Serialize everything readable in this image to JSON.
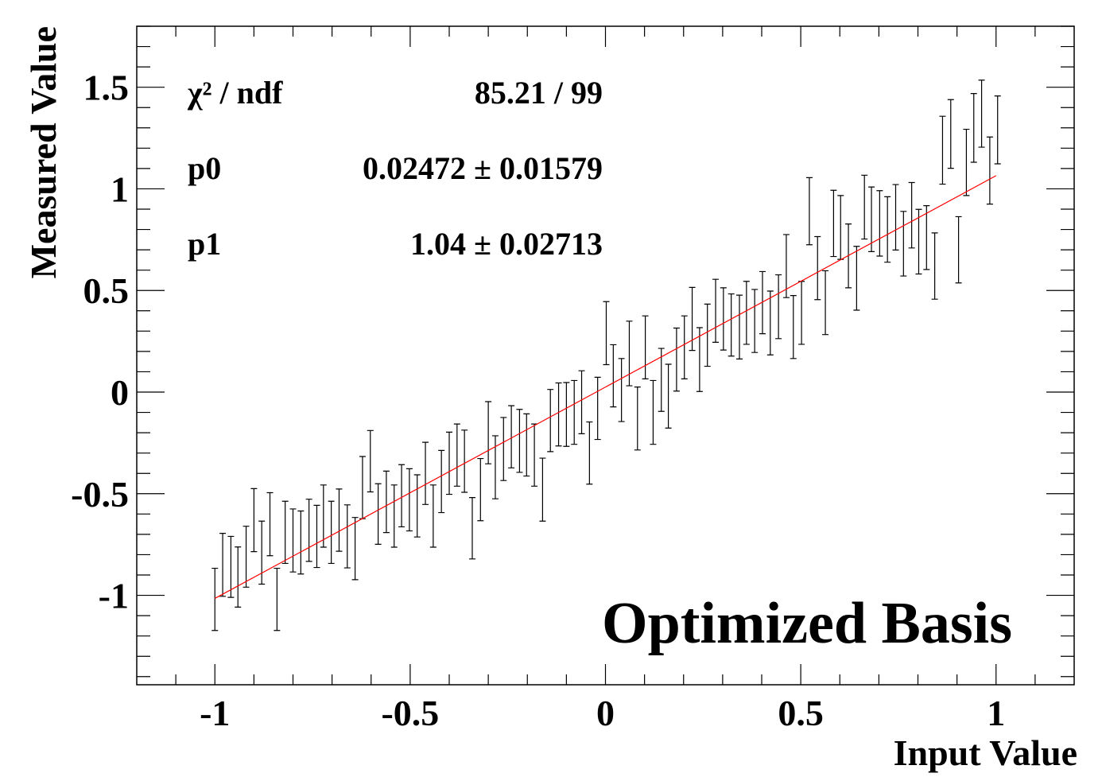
{
  "chart_data": {
    "type": "errorbar",
    "annotation": "Optimized Basis",
    "xlabel": "Input Value",
    "ylabel": "Measured Value",
    "xlim": [
      -1.2,
      1.2
    ],
    "ylim": [
      -1.44,
      1.8
    ],
    "xticks": [
      -1,
      -0.5,
      0,
      0.5,
      1
    ],
    "yticks": [
      -1,
      -0.5,
      0,
      0.5,
      1,
      1.5
    ],
    "xminorticks": [
      -1.1,
      -0.9,
      -0.8,
      -0.7,
      -0.6,
      -0.4,
      -0.3,
      -0.2,
      -0.1,
      0.1,
      0.2,
      0.3,
      0.4,
      0.6,
      0.7,
      0.8,
      0.9,
      1.1
    ],
    "yminorticks": [
      -1.4,
      -1.3,
      -1.2,
      -1.1,
      -0.9,
      -0.8,
      -0.7,
      -0.6,
      -0.4,
      -0.3,
      -0.2,
      -0.1,
      0.1,
      0.2,
      0.3,
      0.4,
      0.6,
      0.7,
      0.8,
      0.9,
      1.1,
      1.2,
      1.3,
      1.4,
      1.6,
      1.7,
      1.8
    ],
    "stats": [
      {
        "label": "χ² / ndf",
        "value": "85.21 / 99"
      },
      {
        "label": "p0",
        "value": "0.02472 ± 0.01579"
      },
      {
        "label": "p1",
        "value": "1.04 ± 0.02713"
      }
    ],
    "fit": {
      "color": "#ff0000",
      "p0": 0.02472,
      "p1": 1.04,
      "xrange": [
        -1,
        1
      ]
    },
    "series": [
      {
        "color": "#000000",
        "x": [
          -1.0,
          -0.98,
          -0.959,
          -0.941,
          -0.92,
          -0.9,
          -0.88,
          -0.859,
          -0.841,
          -0.82,
          -0.8,
          -0.78,
          -0.759,
          -0.739,
          -0.722,
          -0.702,
          -0.682,
          -0.661,
          -0.641,
          -0.622,
          -0.602,
          -0.582,
          -0.561,
          -0.541,
          -0.522,
          -0.502,
          -0.482,
          -0.461,
          -0.441,
          -0.42,
          -0.4,
          -0.38,
          -0.361,
          -0.341,
          -0.32,
          -0.3,
          -0.282,
          -0.261,
          -0.241,
          -0.22,
          -0.202,
          -0.182,
          -0.161,
          -0.141,
          -0.12,
          -0.1,
          -0.08,
          -0.061,
          -0.041,
          -0.02,
          0.002,
          0.02,
          0.041,
          0.061,
          0.082,
          0.102,
          0.122,
          0.143,
          0.161,
          0.182,
          0.202,
          0.222,
          0.241,
          0.261,
          0.282,
          0.302,
          0.322,
          0.343,
          0.361,
          0.382,
          0.402,
          0.422,
          0.443,
          0.463,
          0.481,
          0.502,
          0.522,
          0.543,
          0.563,
          0.584,
          0.602,
          0.622,
          0.643,
          0.663,
          0.681,
          0.702,
          0.722,
          0.743,
          0.763,
          0.784,
          0.802,
          0.822,
          0.843,
          0.863,
          0.884,
          0.904,
          0.924,
          0.943,
          0.963,
          0.984,
          1.004
        ],
        "values": [
          -1.02,
          -0.85,
          -0.86,
          -0.91,
          -0.81,
          -0.63,
          -0.79,
          -0.65,
          -1.02,
          -0.69,
          -0.73,
          -0.74,
          -0.68,
          -0.71,
          -0.61,
          -0.69,
          -0.63,
          -0.71,
          -0.77,
          -0.47,
          -0.34,
          -0.6,
          -0.54,
          -0.61,
          -0.51,
          -0.53,
          -0.56,
          -0.4,
          -0.61,
          -0.44,
          -0.35,
          -0.31,
          -0.34,
          -0.67,
          -0.48,
          -0.2,
          -0.37,
          -0.28,
          -0.22,
          -0.24,
          -0.26,
          -0.31,
          -0.48,
          -0.14,
          -0.11,
          -0.11,
          -0.1,
          -0.05,
          -0.3,
          -0.08,
          0.29,
          0.08,
          0.01,
          0.19,
          -0.13,
          0.22,
          -0.1,
          0.06,
          -0.02,
          0.16,
          0.22,
          0.36,
          0.16,
          0.28,
          0.4,
          0.36,
          0.33,
          0.32,
          0.39,
          0.35,
          0.44,
          0.34,
          0.42,
          0.62,
          0.32,
          0.39,
          0.89,
          0.61,
          0.44,
          0.83,
          0.81,
          0.67,
          0.56,
          0.91,
          0.85,
          0.83,
          0.8,
          0.86,
          0.73,
          0.87,
          0.74,
          0.76,
          0.62,
          1.19,
          1.27,
          0.7,
          1.13,
          1.3,
          1.37,
          1.09,
          1.29
        ],
        "errors": [
          0.153,
          0.155,
          0.15,
          0.148,
          0.15,
          0.155,
          0.155,
          0.155,
          0.153,
          0.153,
          0.155,
          0.155,
          0.153,
          0.153,
          0.153,
          0.153,
          0.153,
          0.155,
          0.153,
          0.153,
          0.151,
          0.149,
          0.151,
          0.153,
          0.153,
          0.153,
          0.153,
          0.153,
          0.153,
          0.153,
          0.153,
          0.153,
          0.153,
          0.151,
          0.153,
          0.153,
          0.155,
          0.155,
          0.153,
          0.155,
          0.153,
          0.153,
          0.155,
          0.153,
          0.155,
          0.157,
          0.157,
          0.155,
          0.153,
          0.153,
          0.155,
          0.153,
          0.155,
          0.159,
          0.155,
          0.155,
          0.157,
          0.155,
          0.157,
          0.155,
          0.155,
          0.155,
          0.157,
          0.153,
          0.155,
          0.153,
          0.153,
          0.157,
          0.155,
          0.155,
          0.153,
          0.157,
          0.157,
          0.155,
          0.155,
          0.155,
          0.165,
          0.155,
          0.157,
          0.163,
          0.157,
          0.157,
          0.157,
          0.157,
          0.159,
          0.161,
          0.161,
          0.161,
          0.159,
          0.161,
          0.159,
          0.157,
          0.163,
          0.167,
          0.169,
          0.163,
          0.163,
          0.169,
          0.165,
          0.165,
          0.167
        ]
      }
    ]
  }
}
